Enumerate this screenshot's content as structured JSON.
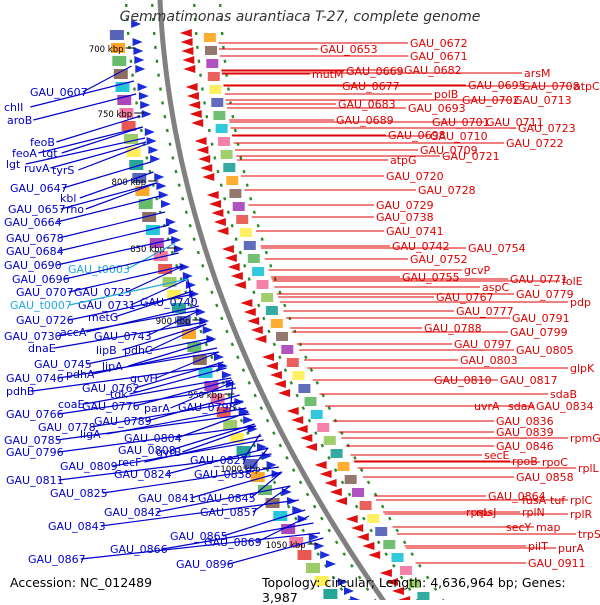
{
  "title": "Gemmatimonas aurantiaca T-27, complete genome",
  "footer": {
    "accession": "Accession: NC_012489",
    "topology": "Topology: circular; Length: 4,636,964 bp; Genes: 3,987"
  },
  "colors": {
    "forward_label": "#0000cc",
    "reverse_label": "#e00000",
    "trna_label": "#22aadd",
    "backbone": "#808080",
    "tick": "#2a8a2a"
  },
  "ticks": [
    "700 kbp",
    "750 kbp",
    "800 kbp",
    "850 kbp",
    "900 kbp",
    "950 kbp",
    "1000 kbp",
    "1050 kbp"
  ],
  "labels_left": [
    "GAU_0607",
    "chlI",
    "aroB",
    "feoB",
    "feoA",
    "tgt",
    "lgt",
    "ruvA",
    "tyrS",
    "GAU_0647",
    "kbl",
    "GAU_0657",
    "rho",
    "GAU_0664",
    "GAU_0678",
    "GAU_0684",
    "GAU_0690",
    "GAU_t0003",
    "GAU_0696",
    "GAU_0707",
    "GAU_0725",
    "GAU_0731",
    "GAU_0740",
    "GAU_t0007",
    "GAU_0726",
    "metG",
    "accA",
    "GAU_0730",
    "GAU_0743",
    "dnaE",
    "lipB",
    "pdhC",
    "GAU_0745",
    "lipA",
    "GAU_0746",
    "pdhA",
    "gcvH",
    "pdhB",
    "GAU_0762",
    "tdk",
    "coaE",
    "GAU_0776",
    "parA",
    "GAU_0798",
    "GAU_0766",
    "GAU_0789",
    "GAU_0778",
    "ligA",
    "GAU_0785",
    "GAU_0804",
    "GAU_0796",
    "GAU_0808",
    "gyrB",
    "recF",
    "GAU_0827",
    "GAU_0809",
    "GAU_0824",
    "GAU_0838",
    "GAU_0811",
    "GAU_0825",
    "GAU_0841",
    "GAU_0845",
    "GAU_0842",
    "GAU_0857",
    "GAU_0843",
    "GAU_0865",
    "GAU_0869",
    "GAU_0866",
    "GAU_0867",
    "GAU_0896"
  ],
  "labels_right": [
    "GAU_0672",
    "GAU_0653",
    "GAU_0671",
    "mutM",
    "GAU_0669",
    "GAU_0682",
    "arsM",
    "GAU_0677",
    "GAU_0695",
    "GAU_0708",
    "atpC",
    "polB",
    "GAU_0702",
    "GAU_0713",
    "GAU_0683",
    "GAU_0693",
    "GAU_0689",
    "GAU_0701",
    "GAU_0711",
    "GAU_0723",
    "GAU_0698",
    "GAU_0710",
    "GAU_0722",
    "GAU_0709",
    "GAU_0721",
    "atpG",
    "GAU_0720",
    "GAU_0728",
    "GAU_0729",
    "GAU_0738",
    "GAU_0741",
    "GAU_0742",
    "GAU_0754",
    "GAU_0752",
    "gcvP",
    "GAU_0755",
    "GAU_0771",
    "folE",
    "aspC",
    "GAU_0767",
    "GAU_0779",
    "GAU_0777",
    "pdp",
    "GAU_0791",
    "GAU_0788",
    "GAU_0799",
    "GAU_0797",
    "GAU_0805",
    "GAU_0803",
    "glpK",
    "GAU_0810",
    "GAU_0817",
    "sdaB",
    "uvrA",
    "sdaA",
    "GAU_0834",
    "GAU_0836",
    "GAU_0839",
    "rpmG",
    "GAU_0846",
    "secE",
    "rpoB",
    "rpoC",
    "rplL",
    "GAU_0858",
    "GAU_0864",
    "fusA",
    "tuf",
    "rplC",
    "rpsL",
    "rpsJ",
    "rplN",
    "rplR",
    "secY",
    "map",
    "trpS",
    "pilT",
    "purA",
    "GAU_0911"
  ]
}
